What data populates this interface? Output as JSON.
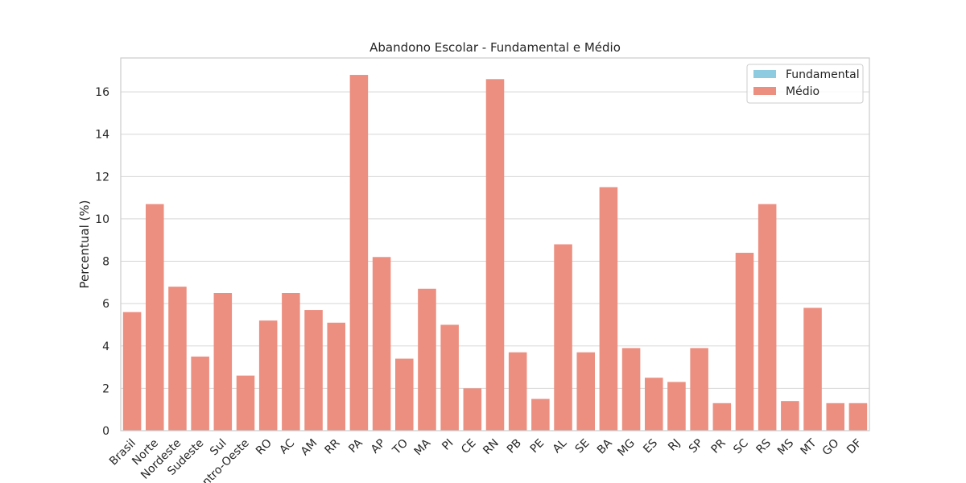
{
  "chart_data": {
    "type": "bar",
    "title": "Abandono Escolar - Fundamental e Médio",
    "xlabel": "",
    "ylabel": "Percentual (%)",
    "ylim": [
      0,
      17.6
    ],
    "yticks": [
      0,
      2,
      4,
      6,
      8,
      10,
      12,
      14,
      16
    ],
    "grid": true,
    "legend_position": "top-right",
    "categories": [
      "Brasil",
      "Norte",
      "Nordeste",
      "Sudeste",
      "Sul",
      "Centro-Oeste",
      "RO",
      "AC",
      "AM",
      "RR",
      "PA",
      "AP",
      "TO",
      "MA",
      "PI",
      "CE",
      "RN",
      "PB",
      "PE",
      "AL",
      "SE",
      "BA",
      "MG",
      "ES",
      "RJ",
      "SP",
      "PR",
      "SC",
      "RS",
      "MS",
      "MT",
      "GO",
      "DF"
    ],
    "series": [
      {
        "name": "Fundamental",
        "color": "#8ecae0",
        "values": [
          0,
          0,
          0,
          0,
          0,
          0,
          0,
          0,
          0,
          0,
          0,
          0,
          0,
          0,
          0,
          0,
          0,
          0,
          0,
          0,
          0,
          0,
          0,
          0,
          0,
          0,
          0,
          0,
          0,
          0,
          0,
          0,
          0
        ]
      },
      {
        "name": "Médio",
        "color": "#ec8f80",
        "values": [
          5.6,
          10.7,
          6.8,
          3.5,
          6.5,
          2.6,
          5.2,
          6.5,
          5.7,
          5.1,
          16.8,
          8.2,
          3.4,
          6.7,
          5.0,
          2.0,
          16.6,
          3.7,
          1.5,
          8.8,
          3.7,
          11.5,
          3.9,
          2.5,
          2.3,
          3.9,
          1.3,
          8.4,
          10.7,
          1.4,
          5.8,
          1.3,
          1.3
        ]
      }
    ]
  }
}
